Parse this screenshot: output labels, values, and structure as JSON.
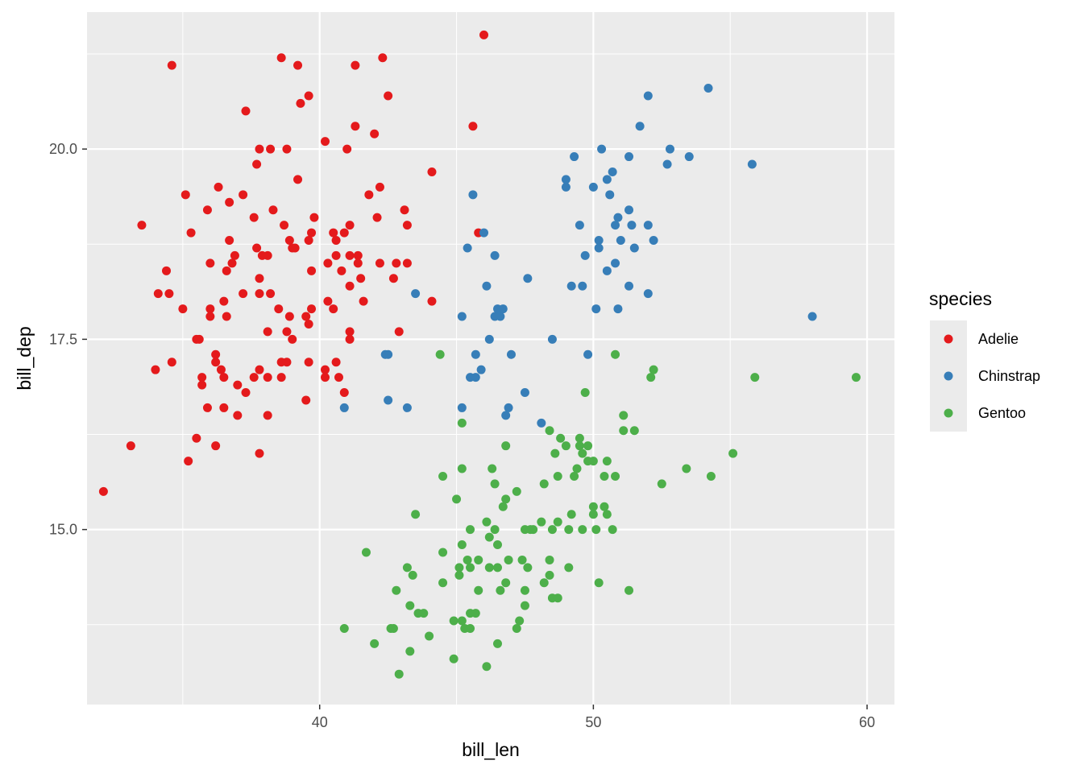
{
  "chart_data": {
    "type": "scatter",
    "title": "",
    "xlabel": "bill_len",
    "ylabel": "bill_dep",
    "xlim": [
      31.5,
      61.0
    ],
    "ylim": [
      12.7,
      21.8
    ],
    "x_ticks": [
      40,
      50,
      60
    ],
    "x_tick_labels": [
      "40",
      "50",
      "60"
    ],
    "y_ticks": [
      15.0,
      17.5,
      20.0
    ],
    "y_tick_labels": [
      "15.0",
      "17.5",
      "20.0"
    ],
    "grid": true,
    "legend": {
      "title": "species",
      "placement": "right"
    },
    "series": [
      {
        "name": "Adelie",
        "color": "#E41A1C",
        "points": [
          [
            32.1,
            15.5
          ],
          [
            33.1,
            16.1
          ],
          [
            33.5,
            19.0
          ],
          [
            34.0,
            17.1
          ],
          [
            34.1,
            18.1
          ],
          [
            34.4,
            18.4
          ],
          [
            34.5,
            18.1
          ],
          [
            34.6,
            21.1
          ],
          [
            34.6,
            17.2
          ],
          [
            35.0,
            17.9
          ],
          [
            35.1,
            19.4
          ],
          [
            35.2,
            15.9
          ],
          [
            35.3,
            18.9
          ],
          [
            35.5,
            16.2
          ],
          [
            35.5,
            17.5
          ],
          [
            35.6,
            17.5
          ],
          [
            35.7,
            16.9
          ],
          [
            35.7,
            17.0
          ],
          [
            35.9,
            16.6
          ],
          [
            35.9,
            19.2
          ],
          [
            36.0,
            17.8
          ],
          [
            36.0,
            17.9
          ],
          [
            36.0,
            18.5
          ],
          [
            36.2,
            16.1
          ],
          [
            36.2,
            17.3
          ],
          [
            36.2,
            17.2
          ],
          [
            36.3,
            19.5
          ],
          [
            36.4,
            17.1
          ],
          [
            36.5,
            16.6
          ],
          [
            36.5,
            18.0
          ],
          [
            36.5,
            17.0
          ],
          [
            36.6,
            17.8
          ],
          [
            36.6,
            18.4
          ],
          [
            36.7,
            19.3
          ],
          [
            36.7,
            18.8
          ],
          [
            36.8,
            18.5
          ],
          [
            36.9,
            18.6
          ],
          [
            37.0,
            16.5
          ],
          [
            37.0,
            16.9
          ],
          [
            37.2,
            18.1
          ],
          [
            37.2,
            19.4
          ],
          [
            37.3,
            20.5
          ],
          [
            37.3,
            16.8
          ],
          [
            37.6,
            17.0
          ],
          [
            37.6,
            19.1
          ],
          [
            37.7,
            18.7
          ],
          [
            37.7,
            19.8
          ],
          [
            37.8,
            16.0
          ],
          [
            37.8,
            18.3
          ],
          [
            37.8,
            20.0
          ],
          [
            37.8,
            17.1
          ],
          [
            37.8,
            18.1
          ],
          [
            37.9,
            18.6
          ],
          [
            38.1,
            16.5
          ],
          [
            38.1,
            17.6
          ],
          [
            38.1,
            17.0
          ],
          [
            38.1,
            18.6
          ],
          [
            38.2,
            18.1
          ],
          [
            38.2,
            20.0
          ],
          [
            38.3,
            19.2
          ],
          [
            38.5,
            17.9
          ],
          [
            38.6,
            21.2
          ],
          [
            38.6,
            17.2
          ],
          [
            38.6,
            17.0
          ],
          [
            38.7,
            19.0
          ],
          [
            38.8,
            17.2
          ],
          [
            38.8,
            20.0
          ],
          [
            38.8,
            17.6
          ],
          [
            38.9,
            17.8
          ],
          [
            38.9,
            18.8
          ],
          [
            39.0,
            17.5
          ],
          [
            39.0,
            18.7
          ],
          [
            39.1,
            18.7
          ],
          [
            39.2,
            21.1
          ],
          [
            39.2,
            19.6
          ],
          [
            39.3,
            20.6
          ],
          [
            39.5,
            16.7
          ],
          [
            39.5,
            17.8
          ],
          [
            39.6,
            17.7
          ],
          [
            39.6,
            18.8
          ],
          [
            39.6,
            20.7
          ],
          [
            39.6,
            17.2
          ],
          [
            39.7,
            18.4
          ],
          [
            39.7,
            18.9
          ],
          [
            39.7,
            17.9
          ],
          [
            39.8,
            19.1
          ],
          [
            40.2,
            20.1
          ],
          [
            40.2,
            17.0
          ],
          [
            40.2,
            17.1
          ],
          [
            40.3,
            18.0
          ],
          [
            40.3,
            18.5
          ],
          [
            40.5,
            17.9
          ],
          [
            40.5,
            18.9
          ],
          [
            40.6,
            18.6
          ],
          [
            40.6,
            18.8
          ],
          [
            40.6,
            17.2
          ],
          [
            40.7,
            17.0
          ],
          [
            40.8,
            18.4
          ],
          [
            40.9,
            16.8
          ],
          [
            40.9,
            18.9
          ],
          [
            41.0,
            20.0
          ],
          [
            41.1,
            17.6
          ],
          [
            41.1,
            18.6
          ],
          [
            41.1,
            19.0
          ],
          [
            41.1,
            17.5
          ],
          [
            41.1,
            18.2
          ],
          [
            41.3,
            21.1
          ],
          [
            41.3,
            20.3
          ],
          [
            41.4,
            18.6
          ],
          [
            41.4,
            18.5
          ],
          [
            41.5,
            18.3
          ],
          [
            41.6,
            18.0
          ],
          [
            41.8,
            19.4
          ],
          [
            42.0,
            20.2
          ],
          [
            42.1,
            19.1
          ],
          [
            42.2,
            18.5
          ],
          [
            42.2,
            19.5
          ],
          [
            42.3,
            21.2
          ],
          [
            42.5,
            20.7
          ],
          [
            42.7,
            18.3
          ],
          [
            42.8,
            18.5
          ],
          [
            42.9,
            17.6
          ],
          [
            43.1,
            19.2
          ],
          [
            43.2,
            18.5
          ],
          [
            43.2,
            19.0
          ],
          [
            44.1,
            19.7
          ],
          [
            44.1,
            18.0
          ],
          [
            45.6,
            20.3
          ],
          [
            45.8,
            18.9
          ],
          [
            46.0,
            21.5
          ]
        ]
      },
      {
        "name": "Chinstrap",
        "color": "#377EB8",
        "points": [
          [
            40.9,
            16.6
          ],
          [
            42.4,
            17.3
          ],
          [
            42.5,
            16.7
          ],
          [
            42.5,
            17.3
          ],
          [
            43.2,
            16.6
          ],
          [
            43.5,
            18.1
          ],
          [
            45.2,
            17.8
          ],
          [
            45.2,
            16.6
          ],
          [
            45.4,
            18.7
          ],
          [
            45.5,
            17.0
          ],
          [
            45.6,
            19.4
          ],
          [
            45.7,
            17.3
          ],
          [
            45.7,
            17.0
          ],
          [
            45.9,
            17.1
          ],
          [
            46.0,
            18.9
          ],
          [
            46.1,
            18.2
          ],
          [
            46.2,
            17.5
          ],
          [
            46.4,
            18.6
          ],
          [
            46.4,
            17.8
          ],
          [
            46.5,
            17.9
          ],
          [
            46.6,
            17.8
          ],
          [
            46.7,
            17.9
          ],
          [
            46.8,
            16.5
          ],
          [
            46.9,
            16.6
          ],
          [
            47.0,
            17.3
          ],
          [
            47.5,
            16.8
          ],
          [
            47.6,
            18.3
          ],
          [
            48.1,
            16.4
          ],
          [
            48.5,
            17.5
          ],
          [
            49.0,
            19.5
          ],
          [
            49.0,
            19.6
          ],
          [
            49.2,
            18.2
          ],
          [
            49.3,
            19.9
          ],
          [
            49.5,
            19.0
          ],
          [
            49.6,
            18.2
          ],
          [
            49.7,
            18.6
          ],
          [
            49.8,
            17.3
          ],
          [
            50.0,
            19.5
          ],
          [
            50.1,
            17.9
          ],
          [
            50.2,
            18.8
          ],
          [
            50.2,
            18.7
          ],
          [
            50.3,
            20.0
          ],
          [
            50.5,
            19.6
          ],
          [
            50.5,
            18.4
          ],
          [
            50.6,
            19.4
          ],
          [
            50.7,
            19.7
          ],
          [
            50.8,
            18.5
          ],
          [
            50.8,
            19.0
          ],
          [
            50.9,
            17.9
          ],
          [
            50.9,
            19.1
          ],
          [
            51.0,
            18.8
          ],
          [
            51.3,
            18.2
          ],
          [
            51.3,
            19.2
          ],
          [
            51.3,
            19.9
          ],
          [
            51.4,
            19.0
          ],
          [
            51.5,
            18.7
          ],
          [
            51.7,
            20.3
          ],
          [
            52.0,
            18.1
          ],
          [
            52.0,
            19.0
          ],
          [
            52.0,
            20.7
          ],
          [
            52.2,
            18.8
          ],
          [
            52.7,
            19.8
          ],
          [
            52.8,
            20.0
          ],
          [
            53.5,
            19.9
          ],
          [
            54.2,
            20.8
          ],
          [
            55.8,
            19.8
          ],
          [
            58.0,
            17.8
          ]
        ]
      },
      {
        "name": "Gentoo",
        "color": "#4DAF4A",
        "points": [
          [
            40.9,
            13.7
          ],
          [
            41.7,
            14.7
          ],
          [
            42.0,
            13.5
          ],
          [
            42.6,
            13.7
          ],
          [
            42.7,
            13.7
          ],
          [
            42.8,
            14.2
          ],
          [
            42.9,
            13.1
          ],
          [
            43.2,
            14.5
          ],
          [
            43.3,
            13.4
          ],
          [
            43.3,
            14.0
          ],
          [
            43.4,
            14.4
          ],
          [
            43.5,
            15.2
          ],
          [
            43.6,
            13.9
          ],
          [
            43.8,
            13.9
          ],
          [
            44.0,
            13.6
          ],
          [
            44.4,
            17.3
          ],
          [
            44.5,
            15.7
          ],
          [
            44.5,
            14.7
          ],
          [
            44.5,
            14.3
          ],
          [
            44.9,
            13.8
          ],
          [
            44.9,
            13.3
          ],
          [
            45.0,
            15.4
          ],
          [
            45.1,
            14.5
          ],
          [
            45.1,
            14.4
          ],
          [
            45.2,
            14.8
          ],
          [
            45.2,
            16.4
          ],
          [
            45.2,
            15.8
          ],
          [
            45.2,
            13.8
          ],
          [
            45.3,
            13.7
          ],
          [
            45.4,
            14.6
          ],
          [
            45.5,
            13.7
          ],
          [
            45.5,
            13.9
          ],
          [
            45.5,
            15.0
          ],
          [
            45.5,
            14.5
          ],
          [
            45.7,
            13.9
          ],
          [
            45.8,
            14.2
          ],
          [
            45.8,
            14.6
          ],
          [
            46.1,
            13.2
          ],
          [
            46.1,
            15.1
          ],
          [
            46.2,
            14.5
          ],
          [
            46.2,
            14.9
          ],
          [
            46.3,
            15.8
          ],
          [
            46.4,
            15.6
          ],
          [
            46.4,
            15.0
          ],
          [
            46.5,
            14.8
          ],
          [
            46.5,
            13.5
          ],
          [
            46.5,
            14.5
          ],
          [
            46.6,
            14.2
          ],
          [
            46.7,
            15.3
          ],
          [
            46.8,
            15.4
          ],
          [
            46.8,
            14.3
          ],
          [
            46.8,
            16.1
          ],
          [
            46.9,
            14.6
          ],
          [
            47.2,
            13.7
          ],
          [
            47.2,
            15.5
          ],
          [
            47.3,
            13.8
          ],
          [
            47.4,
            14.6
          ],
          [
            47.5,
            14.2
          ],
          [
            47.5,
            14.0
          ],
          [
            47.5,
            15.0
          ],
          [
            47.6,
            14.5
          ],
          [
            47.7,
            15.0
          ],
          [
            47.8,
            15.0
          ],
          [
            48.1,
            15.1
          ],
          [
            48.2,
            14.3
          ],
          [
            48.2,
            15.6
          ],
          [
            48.4,
            14.6
          ],
          [
            48.4,
            16.3
          ],
          [
            48.4,
            14.4
          ],
          [
            48.5,
            14.1
          ],
          [
            48.5,
            15.0
          ],
          [
            48.6,
            16.0
          ],
          [
            48.7,
            15.7
          ],
          [
            48.7,
            15.1
          ],
          [
            48.7,
            14.1
          ],
          [
            48.8,
            16.2
          ],
          [
            49.0,
            16.1
          ],
          [
            49.1,
            14.5
          ],
          [
            49.1,
            15.0
          ],
          [
            49.2,
            15.2
          ],
          [
            49.3,
            15.7
          ],
          [
            49.4,
            15.8
          ],
          [
            49.5,
            16.2
          ],
          [
            49.5,
            16.1
          ],
          [
            49.6,
            16.0
          ],
          [
            49.6,
            15.0
          ],
          [
            49.7,
            16.8
          ],
          [
            49.8,
            15.9
          ],
          [
            49.8,
            16.1
          ],
          [
            50.0,
            15.3
          ],
          [
            50.0,
            15.2
          ],
          [
            50.0,
            15.9
          ],
          [
            50.1,
            15.0
          ],
          [
            50.2,
            14.3
          ],
          [
            50.4,
            15.7
          ],
          [
            50.4,
            15.3
          ],
          [
            50.5,
            15.2
          ],
          [
            50.5,
            15.9
          ],
          [
            50.7,
            15.0
          ],
          [
            50.8,
            15.7
          ],
          [
            50.8,
            17.3
          ],
          [
            51.1,
            16.3
          ],
          [
            51.1,
            16.5
          ],
          [
            51.3,
            14.2
          ],
          [
            51.5,
            16.3
          ],
          [
            52.1,
            17.0
          ],
          [
            52.2,
            17.1
          ],
          [
            52.5,
            15.6
          ],
          [
            53.4,
            15.8
          ],
          [
            54.3,
            15.7
          ],
          [
            55.1,
            16.0
          ],
          [
            55.9,
            17.0
          ],
          [
            59.6,
            17.0
          ]
        ]
      }
    ]
  }
}
